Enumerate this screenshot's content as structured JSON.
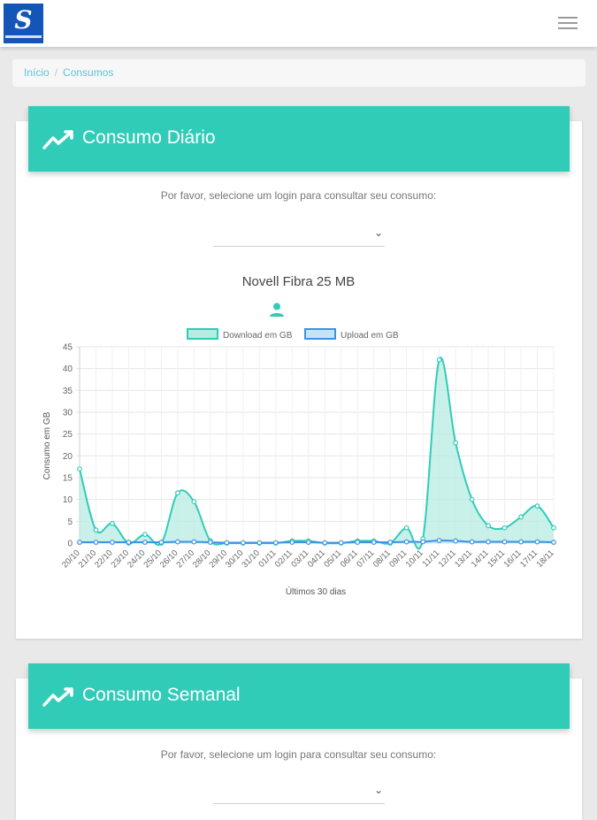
{
  "breadcrumb": {
    "home": "Início",
    "separator": "/",
    "current": "Consumos"
  },
  "cards": {
    "daily": {
      "title": "Consumo Diário",
      "prompt": "Por favor, selecione um login para consultar seu consumo:",
      "select_value": "",
      "plan": "Novell Fibra 25 MB"
    },
    "weekly": {
      "title": "Consumo Semanal",
      "prompt": "Por favor, selecione um login para consultar seu consumo:",
      "select_value": ""
    }
  },
  "icons": {
    "menu": "hamburger-icon",
    "trend": "trending-up-icon",
    "user": "user-icon",
    "select": "chevron-down-icon"
  },
  "colors": {
    "accent": "#31ccb8",
    "download_fill": "#b7ece2",
    "upload": "#3a93e8",
    "link": "#5bc6d9"
  },
  "chart_data": {
    "type": "line",
    "xlabel": "Últimos 30 dias",
    "ylabel": "Consumo em GB",
    "ylim": [
      0,
      45
    ],
    "yticks": [
      0,
      5,
      10,
      15,
      20,
      25,
      30,
      35,
      40,
      45
    ],
    "grid": true,
    "legend_position": "top",
    "categories": [
      "20/10",
      "21/10",
      "22/10",
      "23/10",
      "24/10",
      "25/10",
      "26/10",
      "27/10",
      "28/10",
      "29/10",
      "30/10",
      "31/10",
      "01/11",
      "02/11",
      "03/11",
      "04/11",
      "05/11",
      "06/11",
      "07/11",
      "08/11",
      "09/11",
      "10/11",
      "11/11",
      "12/11",
      "13/11",
      "14/11",
      "15/11",
      "16/11",
      "17/11",
      "18/11"
    ],
    "series": [
      {
        "name": "Download em GB",
        "values": [
          17,
          3,
          4.5,
          0,
          2,
          0,
          11.5,
          9.5,
          0.5,
          0,
          0,
          0,
          0,
          0.5,
          0.5,
          0,
          0,
          0.5,
          0.5,
          0,
          3.5,
          1,
          42,
          23,
          10,
          4,
          3.5,
          6,
          8.5,
          3.5
        ]
      },
      {
        "name": "Upload em GB",
        "values": [
          0.2,
          0.2,
          0.2,
          0.2,
          0.2,
          0.2,
          0.3,
          0.3,
          0.2,
          0.1,
          0.1,
          0.1,
          0.1,
          0.2,
          0.2,
          0.1,
          0.1,
          0.2,
          0.2,
          0.2,
          0.3,
          0.3,
          0.6,
          0.5,
          0.3,
          0.3,
          0.3,
          0.3,
          0.3,
          0.2
        ]
      }
    ]
  }
}
